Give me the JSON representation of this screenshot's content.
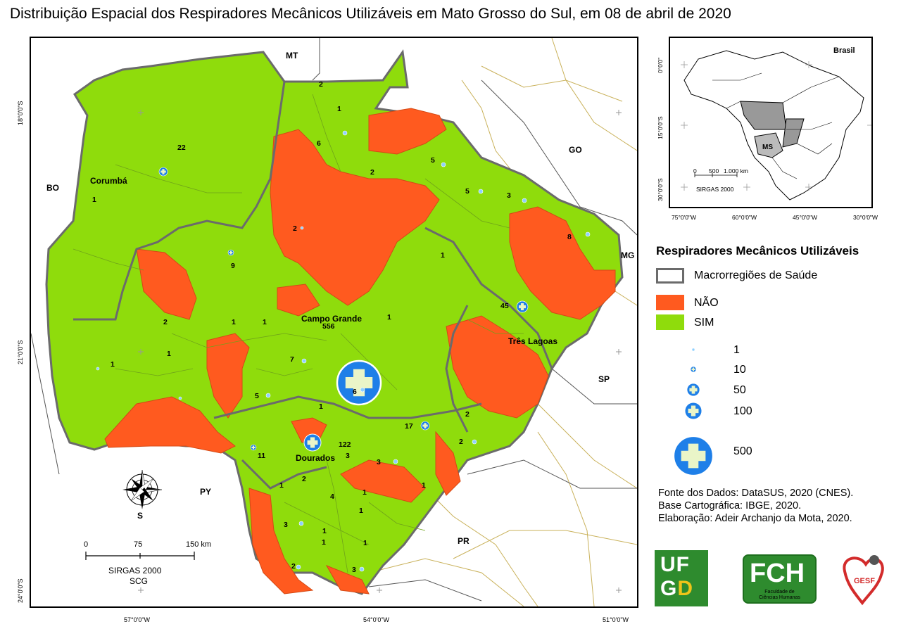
{
  "title": "Distribuição Espacial dos Respiradores Mecânicos Utilizáveis em Mato Grosso do Sul, em 08 de abril de 2020",
  "colors": {
    "sim": "#8fdc0c",
    "nao": "#ff5a1f",
    "macro_border": "#6b6b6b",
    "bubble": "#1e7fe8",
    "bubble_cross": "#eaf5c8"
  },
  "main_map": {
    "lon_labels": [
      "57°0'0\"W",
      "54°0'0\"W",
      "51°0'0\"W"
    ],
    "lat_labels": [
      "18°0'0\"S",
      "21°0'0\"S",
      "24°0'0\"S"
    ],
    "state_labels": [
      "MT",
      "GO",
      "MG",
      "SP",
      "PR",
      "PY",
      "BO"
    ],
    "city_labels": [
      "Corumbá",
      "Campo Grande",
      "Três Lagoas",
      "Dourados"
    ],
    "counts": [
      "22",
      "1",
      "2",
      "1",
      "6",
      "2",
      "5",
      "5",
      "3",
      "8",
      "2",
      "9",
      "1",
      "1",
      "1",
      "45",
      "556",
      "1",
      "2",
      "1",
      "1",
      "7",
      "5",
      "6",
      "1",
      "17",
      "2",
      "2",
      "11",
      "122",
      "3",
      "3",
      "1",
      "2",
      "1",
      "4",
      "1",
      "3",
      "1",
      "1",
      "2",
      "3",
      "1",
      "1"
    ],
    "scale": {
      "ticks": [
        "0",
        "75",
        "150 km"
      ],
      "crs": "SIRGAS 2000",
      "crs2": "SCG"
    },
    "north_letter": "S"
  },
  "inset": {
    "country": "Brasil",
    "state": "MS",
    "lon_labels": [
      "75°0'0\"W",
      "60°0'0\"W",
      "45°0'0\"W",
      "30°0'0\"W"
    ],
    "lat_labels": [
      "0°0'0\"",
      "15°0'0\"S",
      "30°0'0\"S"
    ],
    "scale_ticks": [
      "0",
      "500",
      "1.000 km"
    ],
    "crs": "SIRGAS 2000"
  },
  "legend": {
    "title": "Respiradores Mecânicos Utilizáveis",
    "macro": "Macrorregiões de Saúde",
    "nao": "NÃO",
    "sim": "SIM",
    "bubbles": [
      "1",
      "10",
      "50",
      "100",
      "500"
    ]
  },
  "sources": [
    "Fonte dos Dados: DataSUS, 2020 (CNES).",
    "Base Cartográfica: IBGE, 2020.",
    "Elaboração: Adeir Archanjo da Mota, 2020."
  ],
  "logos": {
    "ufgd": [
      "UF",
      "GD"
    ],
    "fch": "FCH",
    "fch_sub": "Faculdade de Ciências Humanas",
    "gesf": "GESF"
  }
}
